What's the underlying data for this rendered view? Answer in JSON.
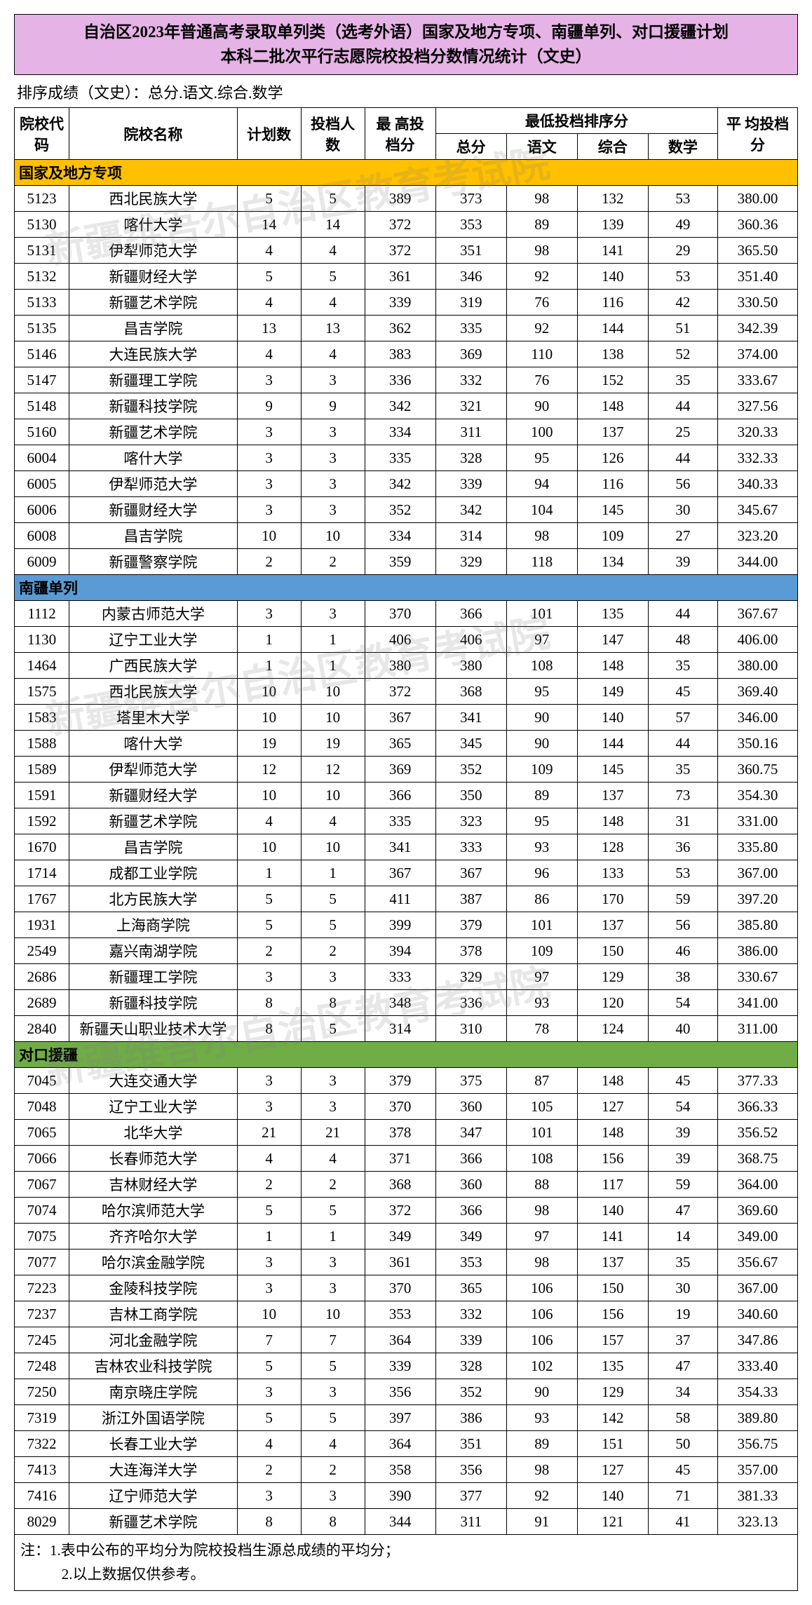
{
  "title_line1": "自治区2023年普通高考录取单列类（选考外语）国家及地方专项、南疆单列、对口援疆计划",
  "title_line2": "本科二批次平行志愿院校投档分数情况统计（文史）",
  "sort_note": "排序成绩（文史）：总分.语文.综合.数学",
  "watermark": "新疆维吾尔自治区教育考试院",
  "headers": {
    "code": "院校代码",
    "name": "院校名称",
    "plan": "计划数",
    "filed": "投档人数",
    "high": "最 高投档分",
    "group_low": "最低投档排序分",
    "total": "总分",
    "yuwen": "语文",
    "zonghe": "综合",
    "shuxue": "数学",
    "avg": "平 均投档分"
  },
  "sections": [
    {
      "class": "sec1",
      "label": "国家及地方专项",
      "rows": [
        [
          "5123",
          "西北民族大学",
          "5",
          "5",
          "389",
          "373",
          "98",
          "132",
          "53",
          "380.00"
        ],
        [
          "5130",
          "喀什大学",
          "14",
          "14",
          "372",
          "353",
          "89",
          "139",
          "49",
          "360.36"
        ],
        [
          "5131",
          "伊犁师范大学",
          "4",
          "4",
          "372",
          "351",
          "98",
          "141",
          "29",
          "365.50"
        ],
        [
          "5132",
          "新疆财经大学",
          "5",
          "5",
          "361",
          "346",
          "92",
          "140",
          "53",
          "351.40"
        ],
        [
          "5133",
          "新疆艺术学院",
          "4",
          "4",
          "339",
          "319",
          "76",
          "116",
          "42",
          "330.50"
        ],
        [
          "5135",
          "昌吉学院",
          "13",
          "13",
          "362",
          "335",
          "92",
          "144",
          "51",
          "342.39"
        ],
        [
          "5146",
          "大连民族大学",
          "4",
          "4",
          "383",
          "369",
          "110",
          "138",
          "52",
          "374.00"
        ],
        [
          "5147",
          "新疆理工学院",
          "3",
          "3",
          "336",
          "332",
          "76",
          "152",
          "35",
          "333.67"
        ],
        [
          "5148",
          "新疆科技学院",
          "9",
          "9",
          "342",
          "321",
          "90",
          "148",
          "44",
          "327.56"
        ],
        [
          "5160",
          "新疆艺术学院",
          "3",
          "3",
          "334",
          "311",
          "100",
          "137",
          "25",
          "320.33"
        ],
        [
          "6004",
          "喀什大学",
          "3",
          "3",
          "335",
          "328",
          "95",
          "126",
          "44",
          "332.33"
        ],
        [
          "6005",
          "伊犁师范大学",
          "3",
          "3",
          "342",
          "339",
          "94",
          "116",
          "56",
          "340.33"
        ],
        [
          "6006",
          "新疆财经大学",
          "3",
          "3",
          "352",
          "342",
          "104",
          "145",
          "30",
          "345.67"
        ],
        [
          "6008",
          "昌吉学院",
          "10",
          "10",
          "334",
          "314",
          "98",
          "109",
          "27",
          "323.20"
        ],
        [
          "6009",
          "新疆警察学院",
          "2",
          "2",
          "359",
          "329",
          "118",
          "134",
          "39",
          "344.00"
        ]
      ]
    },
    {
      "class": "sec2",
      "label": "南疆单列",
      "rows": [
        [
          "1112",
          "内蒙古师范大学",
          "3",
          "3",
          "370",
          "366",
          "101",
          "135",
          "44",
          "367.67"
        ],
        [
          "1130",
          "辽宁工业大学",
          "1",
          "1",
          "406",
          "406",
          "97",
          "147",
          "48",
          "406.00"
        ],
        [
          "1464",
          "广西民族大学",
          "1",
          "1",
          "380",
          "380",
          "108",
          "148",
          "35",
          "380.00"
        ],
        [
          "1575",
          "西北民族大学",
          "10",
          "10",
          "372",
          "368",
          "95",
          "149",
          "45",
          "369.40"
        ],
        [
          "1583",
          "塔里木大学",
          "10",
          "10",
          "367",
          "341",
          "90",
          "140",
          "57",
          "346.00"
        ],
        [
          "1588",
          "喀什大学",
          "19",
          "19",
          "365",
          "345",
          "90",
          "144",
          "44",
          "350.16"
        ],
        [
          "1589",
          "伊犁师范大学",
          "12",
          "12",
          "369",
          "352",
          "109",
          "145",
          "35",
          "360.75"
        ],
        [
          "1591",
          "新疆财经大学",
          "10",
          "10",
          "366",
          "350",
          "89",
          "137",
          "73",
          "354.30"
        ],
        [
          "1592",
          "新疆艺术学院",
          "4",
          "4",
          "335",
          "323",
          "95",
          "148",
          "31",
          "331.00"
        ],
        [
          "1670",
          "昌吉学院",
          "10",
          "10",
          "341",
          "333",
          "93",
          "128",
          "36",
          "335.80"
        ],
        [
          "1714",
          "成都工业学院",
          "1",
          "1",
          "367",
          "367",
          "96",
          "133",
          "53",
          "367.00"
        ],
        [
          "1767",
          "北方民族大学",
          "5",
          "5",
          "411",
          "387",
          "86",
          "170",
          "59",
          "397.20"
        ],
        [
          "1931",
          "上海商学院",
          "5",
          "5",
          "399",
          "379",
          "101",
          "137",
          "56",
          "385.80"
        ],
        [
          "2549",
          "嘉兴南湖学院",
          "2",
          "2",
          "394",
          "378",
          "109",
          "150",
          "46",
          "386.00"
        ],
        [
          "2686",
          "新疆理工学院",
          "3",
          "3",
          "333",
          "329",
          "97",
          "129",
          "38",
          "330.67"
        ],
        [
          "2689",
          "新疆科技学院",
          "8",
          "8",
          "348",
          "336",
          "93",
          "120",
          "54",
          "341.00"
        ],
        [
          "2840",
          "新疆天山职业技术大学",
          "8",
          "5",
          "314",
          "310",
          "78",
          "124",
          "40",
          "311.00"
        ]
      ]
    },
    {
      "class": "sec3",
      "label": "对口援疆",
      "rows": [
        [
          "7045",
          "大连交通大学",
          "3",
          "3",
          "379",
          "375",
          "87",
          "148",
          "45",
          "377.33"
        ],
        [
          "7048",
          "辽宁工业大学",
          "3",
          "3",
          "370",
          "360",
          "105",
          "127",
          "54",
          "366.33"
        ],
        [
          "7065",
          "北华大学",
          "21",
          "21",
          "378",
          "347",
          "101",
          "148",
          "39",
          "356.52"
        ],
        [
          "7066",
          "长春师范大学",
          "4",
          "4",
          "371",
          "366",
          "108",
          "156",
          "39",
          "368.75"
        ],
        [
          "7067",
          "吉林财经大学",
          "2",
          "2",
          "368",
          "360",
          "88",
          "117",
          "59",
          "364.00"
        ],
        [
          "7074",
          "哈尔滨师范大学",
          "5",
          "5",
          "372",
          "366",
          "98",
          "140",
          "47",
          "369.60"
        ],
        [
          "7075",
          "齐齐哈尔大学",
          "1",
          "1",
          "349",
          "349",
          "97",
          "141",
          "14",
          "349.00"
        ],
        [
          "7077",
          "哈尔滨金融学院",
          "3",
          "3",
          "361",
          "353",
          "98",
          "137",
          "35",
          "356.67"
        ],
        [
          "7223",
          "金陵科技学院",
          "3",
          "3",
          "370",
          "365",
          "106",
          "150",
          "30",
          "367.00"
        ],
        [
          "7237",
          "吉林工商学院",
          "10",
          "10",
          "353",
          "332",
          "106",
          "156",
          "19",
          "340.60"
        ],
        [
          "7245",
          "河北金融学院",
          "7",
          "7",
          "364",
          "339",
          "106",
          "157",
          "37",
          "347.86"
        ],
        [
          "7248",
          "吉林农业科技学院",
          "5",
          "5",
          "339",
          "328",
          "102",
          "135",
          "47",
          "333.40"
        ],
        [
          "7250",
          "南京晓庄学院",
          "3",
          "3",
          "356",
          "352",
          "90",
          "129",
          "34",
          "354.33"
        ],
        [
          "7319",
          "浙江外国语学院",
          "5",
          "5",
          "397",
          "386",
          "93",
          "142",
          "58",
          "389.80"
        ],
        [
          "7322",
          "长春工业大学",
          "4",
          "4",
          "364",
          "351",
          "89",
          "151",
          "50",
          "356.75"
        ],
        [
          "7413",
          "大连海洋大学",
          "2",
          "2",
          "358",
          "356",
          "98",
          "127",
          "45",
          "357.00"
        ],
        [
          "7416",
          "辽宁师范大学",
          "3",
          "3",
          "390",
          "377",
          "92",
          "140",
          "71",
          "381.33"
        ],
        [
          "8029",
          "新疆艺术学院",
          "8",
          "8",
          "344",
          "311",
          "91",
          "121",
          "41",
          "323.13"
        ]
      ]
    }
  ],
  "footnote1": "注：1.表中公布的平均分为院校投档生源总成绩的平均分；",
  "footnote2": "2.以上数据仅供参考。",
  "colors": {
    "header_bg": "#e6b3e6",
    "sec1": "#ffc000",
    "sec2": "#5b9bd5",
    "sec3": "#70ad47"
  }
}
